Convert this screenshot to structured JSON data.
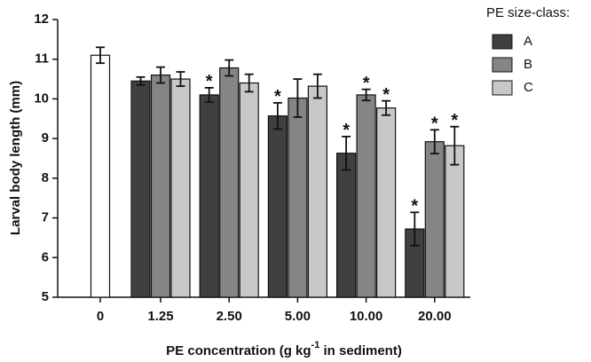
{
  "chart_data": {
    "type": "bar",
    "y_label": "Larval body length (mm)",
    "x_label": {
      "text": "PE concentration (g kg",
      "superscript": "-1",
      "suffix": " in sediment)"
    },
    "legend_title": "PE size-class:",
    "categories": [
      "0",
      "1.25",
      "2.50",
      "5.00",
      "10.00",
      "20.00"
    ],
    "control": {
      "value": 11.1,
      "error": 0.2,
      "color": "#ffffff"
    },
    "series": [
      {
        "name": "A",
        "color": "#404040",
        "values": [
          null,
          10.45,
          10.1,
          9.57,
          8.63,
          6.72
        ],
        "errors": [
          null,
          0.1,
          0.18,
          0.33,
          0.42,
          0.42
        ],
        "significant": [
          false,
          false,
          true,
          true,
          true,
          true
        ]
      },
      {
        "name": "B",
        "color": "#858585",
        "values": [
          null,
          10.6,
          10.78,
          10.02,
          10.1,
          8.92
        ],
        "errors": [
          null,
          0.2,
          0.2,
          0.48,
          0.14,
          0.3
        ],
        "significant": [
          false,
          false,
          false,
          false,
          true,
          true
        ]
      },
      {
        "name": "C",
        "color": "#c8c8c8",
        "values": [
          null,
          10.5,
          10.4,
          10.32,
          9.77,
          8.82
        ],
        "errors": [
          null,
          0.18,
          0.22,
          0.3,
          0.18,
          0.48
        ],
        "significant": [
          false,
          false,
          false,
          false,
          true,
          true
        ]
      }
    ],
    "significance_marker": "*",
    "ylim": [
      5,
      12
    ],
    "yticks": [
      5,
      6,
      7,
      8,
      9,
      10,
      11,
      12
    ]
  }
}
